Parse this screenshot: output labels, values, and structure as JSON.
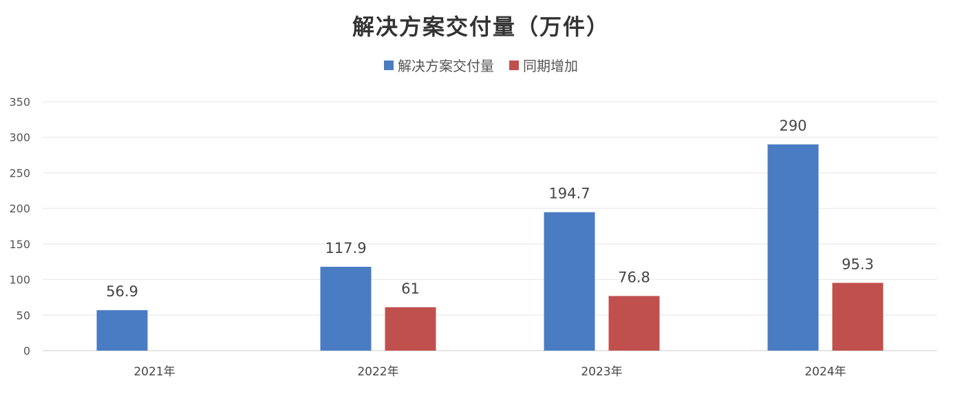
{
  "chart_data": {
    "type": "bar",
    "title": "解决方案交付量（万件）",
    "categories": [
      "2021年",
      "2022年",
      "2023年",
      "2024年"
    ],
    "series": [
      {
        "name": "解决方案交付量",
        "color": "#4a7cc3",
        "values": [
          56.9,
          117.9,
          194.7,
          290
        ]
      },
      {
        "name": "同期增加",
        "color": "#c0504d",
        "values": [
          null,
          61,
          76.8,
          95.3
        ]
      }
    ],
    "data_labels": [
      [
        "56.9",
        "117.9",
        "194.7",
        "290"
      ],
      [
        null,
        "61",
        "76.8",
        "95.3"
      ]
    ],
    "y_ticks": [
      "0",
      "50",
      "100",
      "150",
      "200",
      "250",
      "300",
      "350"
    ],
    "ylim": [
      0,
      350
    ],
    "grid": true,
    "legend_position": "top-center",
    "xlabel": "",
    "ylabel": ""
  }
}
